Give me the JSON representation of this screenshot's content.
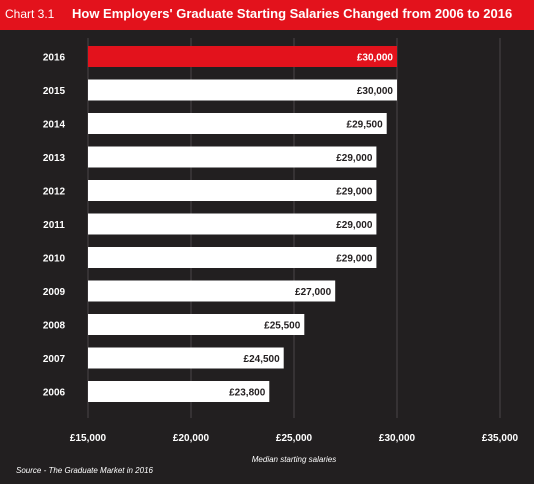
{
  "header": {
    "chart_number": "Chart 3.1",
    "title": "How Employers' Graduate Starting Salaries Changed from 2006 to 2016"
  },
  "source": "Source - The Graduate Market in 2016",
  "colors": {
    "background": "#221f20",
    "header": "#e3121c",
    "bar": "#ffffff",
    "highlight_bar": "#e3121c",
    "grid": "#4a4647"
  },
  "chart_data": {
    "type": "bar",
    "orientation": "horizontal",
    "title": "How Employers' Graduate Starting Salaries Changed from 2006 to 2016",
    "categories": [
      "2016",
      "2015",
      "2014",
      "2013",
      "2012",
      "2011",
      "2010",
      "2009",
      "2008",
      "2007",
      "2006"
    ],
    "values": [
      30000,
      30000,
      29500,
      29000,
      29000,
      29000,
      29000,
      27000,
      25500,
      24500,
      23800
    ],
    "value_labels": [
      "£30,000",
      "£30,000",
      "£29,500",
      "£29,000",
      "£29,000",
      "£29,000",
      "£29,000",
      "£27,000",
      "£25,500",
      "£24,500",
      "£23,800"
    ],
    "highlight_index": 0,
    "xlabel": "Median starting salaries",
    "ylabel": "",
    "xlim": [
      15000,
      35000
    ],
    "xticks": [
      15000,
      20000,
      25000,
      30000,
      35000
    ],
    "xtick_labels": [
      "£15,000",
      "£20,000",
      "£25,000",
      "£30,000",
      "£35,000"
    ],
    "grid": true
  }
}
